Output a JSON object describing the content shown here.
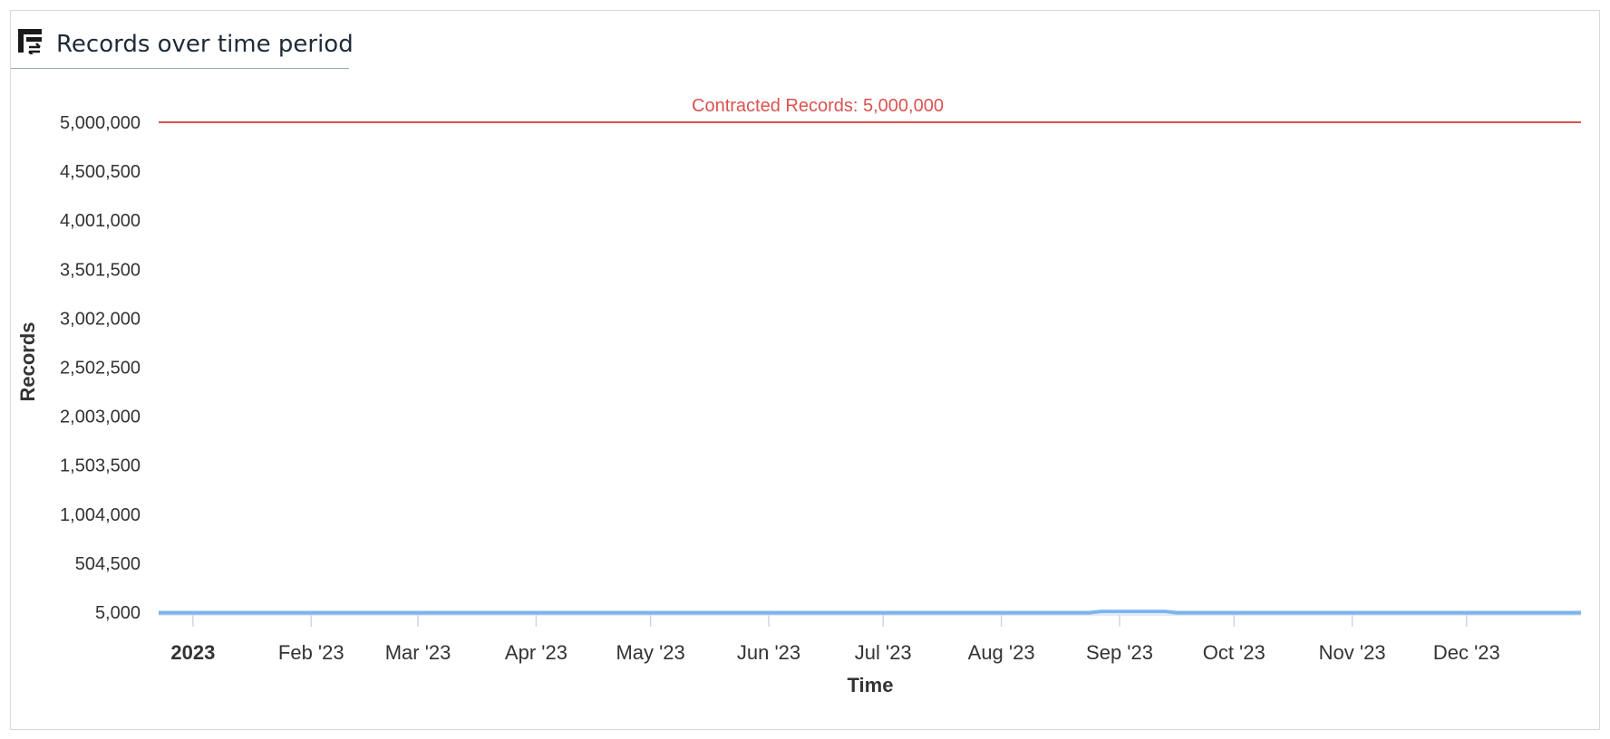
{
  "panel": {
    "title": "Records over time period",
    "icon": "table-sync-icon"
  },
  "colors": {
    "series": "#7cb5ec",
    "reference": "#d9534f",
    "tick": "#ccd6eb",
    "text": "#333333"
  },
  "chart_data": {
    "type": "line",
    "title": "",
    "xlabel": "Time",
    "ylabel": "Records",
    "x_tick_labels": [
      "2023",
      "Feb '23",
      "Mar '23",
      "Apr '23",
      "May '23",
      "Jun '23",
      "Jul '23",
      "Aug '23",
      "Sep '23",
      "Oct '23",
      "Nov '23",
      "Dec '23"
    ],
    "x_tick_dates": [
      "2023-01-01",
      "2023-02-01",
      "2023-03-01",
      "2023-04-01",
      "2023-05-01",
      "2023-06-01",
      "2023-07-01",
      "2023-08-01",
      "2023-09-01",
      "2023-10-01",
      "2023-11-01",
      "2023-12-01"
    ],
    "xlim": [
      "2022-12-23",
      "2023-12-31"
    ],
    "y_tick_labels": [
      "5,000",
      "504,500",
      "1,004,000",
      "1,503,500",
      "2,003,000",
      "2,502,500",
      "3,002,000",
      "3,501,500",
      "4,001,000",
      "4,500,500",
      "5,000,000"
    ],
    "ylim": [
      5000,
      5000000
    ],
    "grid": false,
    "reference_line": {
      "value": 5000000,
      "label": "Contracted Records: 5,000,000"
    },
    "series": [
      {
        "x": [
          "2022-12-23",
          "2023-08-24",
          "2023-08-27",
          "2023-09-13",
          "2023-09-16",
          "2023-12-31"
        ],
        "values": [
          0,
          0,
          12000,
          12000,
          0,
          0
        ]
      }
    ]
  }
}
